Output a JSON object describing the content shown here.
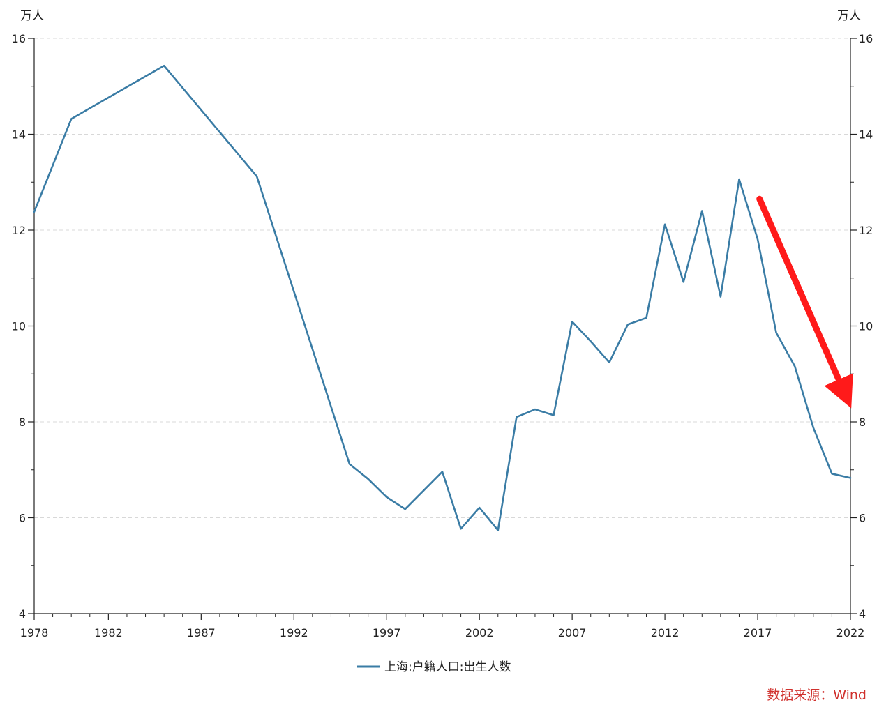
{
  "chart_data": {
    "type": "line",
    "y_unit_left": "万人",
    "y_unit_right": "万人",
    "x_tick_labels": [
      "1978",
      "1982",
      "1987",
      "1992",
      "1997",
      "2002",
      "2007",
      "2012",
      "2017",
      "2022"
    ],
    "x_ticks": [
      1978,
      1982,
      1987,
      1992,
      1997,
      2002,
      2007,
      2012,
      2017,
      2022
    ],
    "y_ticks": [
      4,
      6,
      8,
      10,
      12,
      14,
      16
    ],
    "y_tick_labels": [
      "4",
      "6",
      "8",
      "10",
      "12",
      "14",
      "16"
    ],
    "xlim": [
      1978,
      2022
    ],
    "ylim": [
      4,
      16
    ],
    "grid": "horizontal-dashed",
    "legend_position": "bottom-center",
    "series": [
      {
        "name": "上海:户籍人口:出生人数",
        "color": "#3a7ca5",
        "points": [
          [
            1978,
            12.38
          ],
          [
            1980,
            14.32
          ],
          [
            1985,
            15.43
          ],
          [
            1990,
            13.12
          ],
          [
            1995,
            7.12
          ],
          [
            1996,
            6.81
          ],
          [
            1997,
            6.43
          ],
          [
            1998,
            6.18
          ],
          [
            2000,
            6.96
          ],
          [
            2001,
            5.77
          ],
          [
            2002,
            6.21
          ],
          [
            2003,
            5.74
          ],
          [
            2004,
            8.1
          ],
          [
            2005,
            8.26
          ],
          [
            2006,
            8.14
          ],
          [
            2007,
            10.09
          ],
          [
            2008,
            9.68
          ],
          [
            2009,
            9.24
          ],
          [
            2010,
            10.03
          ],
          [
            2011,
            10.17
          ],
          [
            2012,
            12.12
          ],
          [
            2013,
            10.92
          ],
          [
            2014,
            12.4
          ],
          [
            2015,
            10.61
          ],
          [
            2016,
            13.06
          ],
          [
            2017,
            11.81
          ],
          [
            2018,
            9.86
          ],
          [
            2019,
            9.16
          ],
          [
            2020,
            7.88
          ],
          [
            2021,
            6.92
          ],
          [
            2022,
            6.83
          ]
        ]
      }
    ],
    "annotation": {
      "type": "arrow",
      "color": "#ff1a1a",
      "from": [
        2017.1,
        12.65
      ],
      "to": [
        2021.8,
        8.5
      ]
    }
  },
  "source_note": "数据来源：Wind",
  "colors": {
    "line": "#3a7ca5",
    "axis": "#222222",
    "grid": "#d8d8d8",
    "source_text": "#d0312d",
    "arrow": "#ff1a1a"
  }
}
